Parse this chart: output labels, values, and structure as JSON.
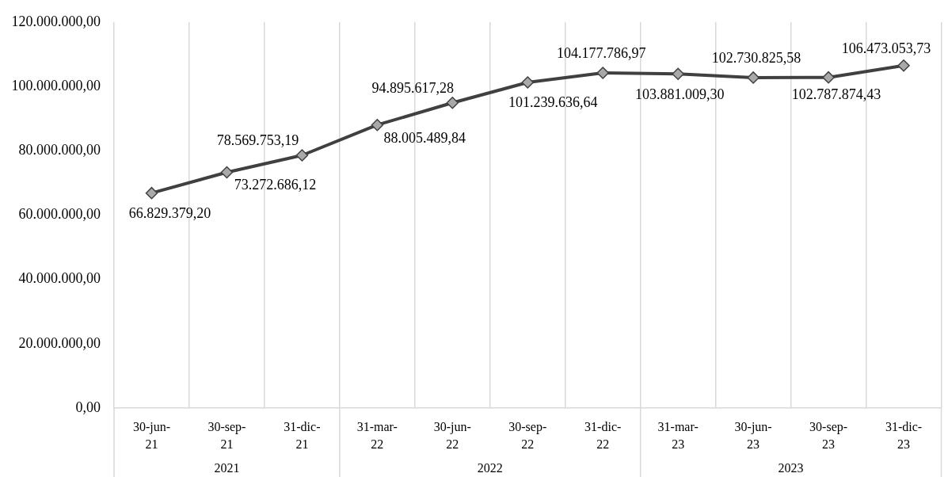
{
  "chart_data": {
    "type": "line",
    "categories": [
      "30-jun-21",
      "30-sep-21",
      "31-dic-21",
      "31-mar-22",
      "30-jun-22",
      "30-sep-22",
      "31-dic-22",
      "31-mar-23",
      "30-jun-23",
      "30-sep-23",
      "31-dic-23"
    ],
    "values": [
      66829379.2,
      73272686.12,
      78569753.19,
      88005489.84,
      94895617.28,
      101239636.64,
      104177786.97,
      103881009.3,
      102730825.58,
      102787874.43,
      106473053.73
    ],
    "value_labels": [
      "66.829.379,20",
      "73.272.686,12",
      "78.569.753,19",
      "88.005.489,84",
      "94.895.617,28",
      "101.239.636,64",
      "104.177.786,97",
      "103.881.009,30",
      "102.730.825,58",
      "102.787.874,43",
      "106.473.053,73"
    ],
    "color": "#404040",
    "ylim": [
      0,
      120000000
    ],
    "yticks": [
      {
        "value": 0,
        "label": "0,00"
      },
      {
        "value": 20000000,
        "label": "20.000.000,00"
      },
      {
        "value": 40000000,
        "label": "40.000.000,00"
      },
      {
        "value": 60000000,
        "label": "60.000.000,00"
      },
      {
        "value": 80000000,
        "label": "80.000.000,00"
      },
      {
        "value": 100000000,
        "label": "100.000.000,00"
      },
      {
        "value": 120000000,
        "label": "120.000.000,00"
      }
    ],
    "grid": "x",
    "marker": "diamond",
    "line_style": "solid",
    "annotations": [
      "2021",
      "2022",
      "2023"
    ]
  }
}
